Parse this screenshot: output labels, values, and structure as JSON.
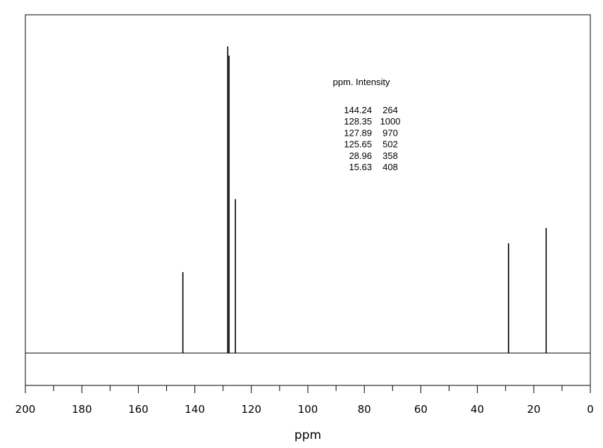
{
  "chart_data": {
    "type": "line",
    "title": "",
    "xlabel": "ppm",
    "ylabel": "",
    "xlim": [
      200,
      0
    ],
    "x_reversed": true,
    "major_ticks": [
      200,
      180,
      160,
      140,
      120,
      100,
      80,
      60,
      40,
      20,
      0
    ],
    "minor_tick_step": 10,
    "peaks": [
      {
        "ppm": 144.24,
        "intensity": 264
      },
      {
        "ppm": 128.35,
        "intensity": 1000
      },
      {
        "ppm": 127.89,
        "intensity": 970
      },
      {
        "ppm": 125.65,
        "intensity": 502
      },
      {
        "ppm": 28.96,
        "intensity": 358
      },
      {
        "ppm": 15.63,
        "intensity": 408
      }
    ],
    "table": {
      "header": "ppm.  Intensity",
      "rows": [
        {
          "ppm": "144.24",
          "intensity": "264"
        },
        {
          "ppm": "128.35",
          "intensity": "1000"
        },
        {
          "ppm": "127.89",
          "intensity": "970"
        },
        {
          "ppm": "125.65",
          "intensity": "502"
        },
        {
          "ppm": "28.96",
          "intensity": "358"
        },
        {
          "ppm": "15.63",
          "intensity": "408"
        }
      ]
    },
    "grid": false,
    "legend": "none"
  }
}
